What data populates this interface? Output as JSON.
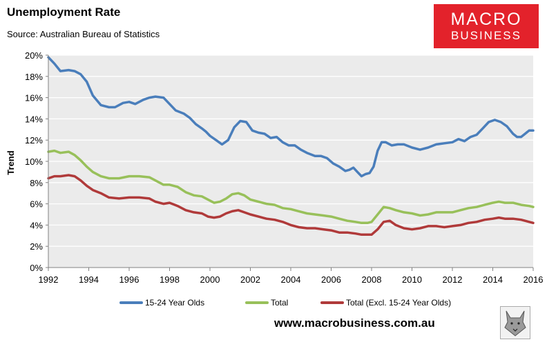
{
  "header": {
    "title": "Unemployment Rate",
    "source": "Source: Australian Bureau of Statistics"
  },
  "logo": {
    "line1": "MACRO",
    "line2": "BUSINESS"
  },
  "footer": {
    "url": "www.macrobusiness.com.au"
  },
  "colors": {
    "youth": "#4a7ebb",
    "total": "#98c05a",
    "excl": "#b03a3a",
    "plot_bg": "#ebebeb",
    "logo_bg": "#e3222b"
  },
  "chart_data": {
    "type": "line",
    "title": "Unemployment Rate",
    "xlabel": "",
    "ylabel": "Trend",
    "xlim": [
      1992,
      2016
    ],
    "ylim": [
      0,
      20
    ],
    "x_ticks": [
      1992,
      1994,
      1996,
      1998,
      2000,
      2002,
      2004,
      2006,
      2008,
      2010,
      2012,
      2014,
      2016
    ],
    "x_tick_labels": [
      "1992",
      "1994",
      "1996",
      "1998",
      "2000",
      "2002",
      "2004",
      "2006",
      "2008",
      "2010",
      "2012",
      "2014",
      "2016"
    ],
    "y_ticks": [
      0,
      2,
      4,
      6,
      8,
      10,
      12,
      14,
      16,
      18,
      20
    ],
    "y_tick_labels": [
      "0%",
      "2%",
      "4%",
      "6%",
      "8%",
      "10%",
      "12%",
      "14%",
      "16%",
      "18%",
      "20%"
    ],
    "legend_position": "bottom",
    "series": [
      {
        "name": "15-24 Year Olds",
        "color": "#4a7ebb",
        "x": [
          1992,
          1992.3,
          1992.6,
          1993,
          1993.3,
          1993.6,
          1993.9,
          1994.2,
          1994.6,
          1995,
          1995.3,
          1995.7,
          1996,
          1996.3,
          1996.7,
          1997,
          1997.3,
          1997.7,
          1998,
          1998.3,
          1998.7,
          1999,
          1999.3,
          1999.6,
          1999.8,
          2000,
          2000.3,
          2000.6,
          2000.9,
          2001.2,
          2001.5,
          2001.8,
          2002.1,
          2002.4,
          2002.7,
          2003,
          2003.3,
          2003.6,
          2003.9,
          2004.2,
          2004.5,
          2004.8,
          2005.2,
          2005.5,
          2005.8,
          2006.1,
          2006.4,
          2006.7,
          2006.9,
          2007.1,
          2007.3,
          2007.5,
          2007.7,
          2007.9,
          2008.1,
          2008.3,
          2008.5,
          2008.7,
          2009,
          2009.3,
          2009.6,
          2010,
          2010.4,
          2010.8,
          2011.2,
          2011.6,
          2012,
          2012.3,
          2012.6,
          2012.9,
          2013.2,
          2013.5,
          2013.8,
          2014.1,
          2014.4,
          2014.7,
          2015,
          2015.2,
          2015.4,
          2015.6,
          2015.8,
          2016
        ],
        "y": [
          19.8,
          19.2,
          18.5,
          18.6,
          18.5,
          18.2,
          17.5,
          16.2,
          15.3,
          15.1,
          15.1,
          15.5,
          15.6,
          15.4,
          15.8,
          16.0,
          16.1,
          16.0,
          15.4,
          14.8,
          14.5,
          14.1,
          13.5,
          13.1,
          12.8,
          12.4,
          12.0,
          11.6,
          12.0,
          13.2,
          13.8,
          13.7,
          12.9,
          12.7,
          12.6,
          12.2,
          12.3,
          11.8,
          11.5,
          11.5,
          11.1,
          10.8,
          10.5,
          10.5,
          10.3,
          9.8,
          9.5,
          9.1,
          9.2,
          9.4,
          9.0,
          8.6,
          8.8,
          8.9,
          9.5,
          11.0,
          11.8,
          11.8,
          11.5,
          11.6,
          11.6,
          11.3,
          11.1,
          11.3,
          11.6,
          11.7,
          11.8,
          12.1,
          11.9,
          12.3,
          12.5,
          13.1,
          13.7,
          13.9,
          13.7,
          13.3,
          12.6,
          12.3,
          12.3,
          12.6,
          12.9,
          12.9
        ]
      },
      {
        "name": "Total",
        "color": "#98c05a",
        "x": [
          1992,
          1992.3,
          1992.6,
          1993,
          1993.3,
          1993.6,
          1993.9,
          1994.2,
          1994.6,
          1995,
          1995.5,
          1996,
          1996.5,
          1997,
          1997.3,
          1997.7,
          1998,
          1998.4,
          1998.8,
          1999.2,
          1999.6,
          1999.9,
          2000.2,
          2000.5,
          2000.8,
          2001.1,
          2001.4,
          2001.7,
          2002,
          2002.4,
          2002.8,
          2003.2,
          2003.6,
          2004,
          2004.4,
          2004.8,
          2005.2,
          2005.6,
          2006,
          2006.4,
          2006.8,
          2007.2,
          2007.5,
          2007.8,
          2008,
          2008.3,
          2008.6,
          2008.9,
          2009.2,
          2009.6,
          2010,
          2010.4,
          2010.8,
          2011.2,
          2011.6,
          2012,
          2012.4,
          2012.8,
          2013.2,
          2013.6,
          2014,
          2014.3,
          2014.6,
          2015,
          2015.4,
          2015.8,
          2016
        ],
        "y": [
          10.9,
          11.0,
          10.8,
          10.9,
          10.6,
          10.1,
          9.5,
          9.0,
          8.6,
          8.4,
          8.4,
          8.6,
          8.6,
          8.5,
          8.2,
          7.8,
          7.8,
          7.6,
          7.1,
          6.8,
          6.7,
          6.4,
          6.1,
          6.2,
          6.5,
          6.9,
          7.0,
          6.8,
          6.4,
          6.2,
          6.0,
          5.9,
          5.6,
          5.5,
          5.3,
          5.1,
          5.0,
          4.9,
          4.8,
          4.6,
          4.4,
          4.3,
          4.2,
          4.2,
          4.3,
          5.0,
          5.7,
          5.6,
          5.4,
          5.2,
          5.1,
          4.9,
          5.0,
          5.2,
          5.2,
          5.2,
          5.4,
          5.6,
          5.7,
          5.9,
          6.1,
          6.2,
          6.1,
          6.1,
          5.9,
          5.8,
          5.7
        ]
      },
      {
        "name": "Total (Excl. 15-24 Year Olds)",
        "color": "#b03a3a",
        "x": [
          1992,
          1992.3,
          1992.6,
          1993,
          1993.3,
          1993.6,
          1993.9,
          1994.2,
          1994.6,
          1995,
          1995.5,
          1996,
          1996.5,
          1997,
          1997.3,
          1997.7,
          1998,
          1998.4,
          1998.8,
          1999.2,
          1999.6,
          1999.9,
          2000.2,
          2000.5,
          2000.8,
          2001.1,
          2001.4,
          2001.7,
          2002,
          2002.4,
          2002.8,
          2003.2,
          2003.6,
          2004,
          2004.4,
          2004.8,
          2005.2,
          2005.6,
          2006,
          2006.4,
          2006.8,
          2007.2,
          2007.5,
          2007.8,
          2008,
          2008.3,
          2008.6,
          2008.9,
          2009.2,
          2009.6,
          2010,
          2010.4,
          2010.8,
          2011.2,
          2011.6,
          2012,
          2012.4,
          2012.8,
          2013.2,
          2013.6,
          2014,
          2014.3,
          2014.6,
          2015,
          2015.4,
          2015.8,
          2016
        ],
        "y": [
          8.4,
          8.6,
          8.6,
          8.7,
          8.6,
          8.2,
          7.7,
          7.3,
          7.0,
          6.6,
          6.5,
          6.6,
          6.6,
          6.5,
          6.2,
          6.0,
          6.1,
          5.8,
          5.4,
          5.2,
          5.1,
          4.8,
          4.7,
          4.8,
          5.1,
          5.3,
          5.4,
          5.2,
          5.0,
          4.8,
          4.6,
          4.5,
          4.3,
          4.0,
          3.8,
          3.7,
          3.7,
          3.6,
          3.5,
          3.3,
          3.3,
          3.2,
          3.1,
          3.1,
          3.1,
          3.6,
          4.3,
          4.4,
          4.0,
          3.7,
          3.6,
          3.7,
          3.9,
          3.9,
          3.8,
          3.9,
          4.0,
          4.2,
          4.3,
          4.5,
          4.6,
          4.7,
          4.6,
          4.6,
          4.5,
          4.3,
          4.2
        ]
      }
    ]
  }
}
